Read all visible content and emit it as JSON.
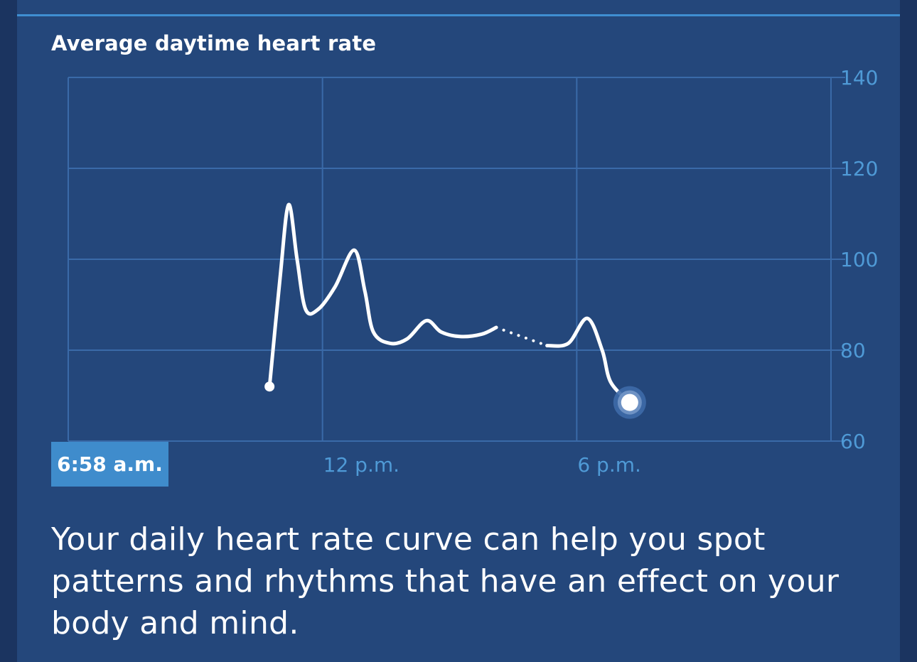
{
  "card": {
    "title": "Average daytime heart rate",
    "time_badge": "6:58 a.m.",
    "description": "Your daily heart rate curve can help you spot patterns and rhythms that have an effect on your body and mind."
  },
  "colors": {
    "background": "#1b3460",
    "card": "#24477b",
    "accent": "#3f8fd2",
    "grid": "#3a6aa8",
    "tick_text": "#4f9ad6",
    "line": "#ffffff"
  },
  "chart_data": {
    "type": "line",
    "title": "Average daytime heart rate",
    "xlabel": "",
    "ylabel": "",
    "x_unit": "hour of day",
    "xlim": [
      6,
      24
    ],
    "ylim": [
      60,
      140
    ],
    "y_ticks": [
      140,
      120,
      100,
      80,
      60
    ],
    "x_tick_labels": [
      {
        "x": 12,
        "label": "12 p.m."
      },
      {
        "x": 18,
        "label": "6 p.m."
      }
    ],
    "y_axis_position": "right",
    "grid": true,
    "series": [
      {
        "style": "solid",
        "points": [
          [
            10.75,
            72
          ],
          [
            11.0,
            96
          ],
          [
            11.2,
            112
          ],
          [
            11.4,
            100
          ],
          [
            11.6,
            89
          ],
          [
            11.9,
            89
          ],
          [
            12.3,
            94
          ],
          [
            12.75,
            102
          ],
          [
            13.0,
            93
          ],
          [
            13.2,
            84
          ],
          [
            13.6,
            81.5
          ],
          [
            14.0,
            82.5
          ],
          [
            14.45,
            86.5
          ],
          [
            14.8,
            84
          ],
          [
            15.25,
            83
          ],
          [
            15.75,
            83.5
          ],
          [
            16.1,
            85
          ]
        ]
      },
      {
        "style": "dotted",
        "points": [
          [
            16.1,
            85
          ],
          [
            17.3,
            81
          ]
        ]
      },
      {
        "style": "solid",
        "points": [
          [
            17.3,
            81
          ],
          [
            17.8,
            81.5
          ],
          [
            18.25,
            87
          ],
          [
            18.6,
            80
          ],
          [
            18.8,
            73
          ],
          [
            19.25,
            68.5
          ]
        ]
      }
    ],
    "current_point": {
      "x": 19.25,
      "y": 68.5
    }
  }
}
